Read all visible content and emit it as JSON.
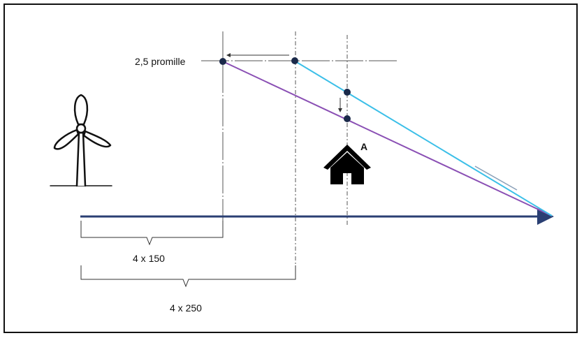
{
  "labels": {
    "promille": "2,5 promille",
    "house_label": "A",
    "distance_short": "4 x 150",
    "distance_long": "4 x 250"
  },
  "icons": {
    "turbine": "wind-turbine-icon",
    "house": "house-icon"
  },
  "colors": {
    "ground_line": "#2a3f73",
    "line_purple": "#8a4fb4",
    "line_cyan": "#3bbfe8",
    "dots": "#1b2a4a",
    "guides": "#555555"
  }
}
